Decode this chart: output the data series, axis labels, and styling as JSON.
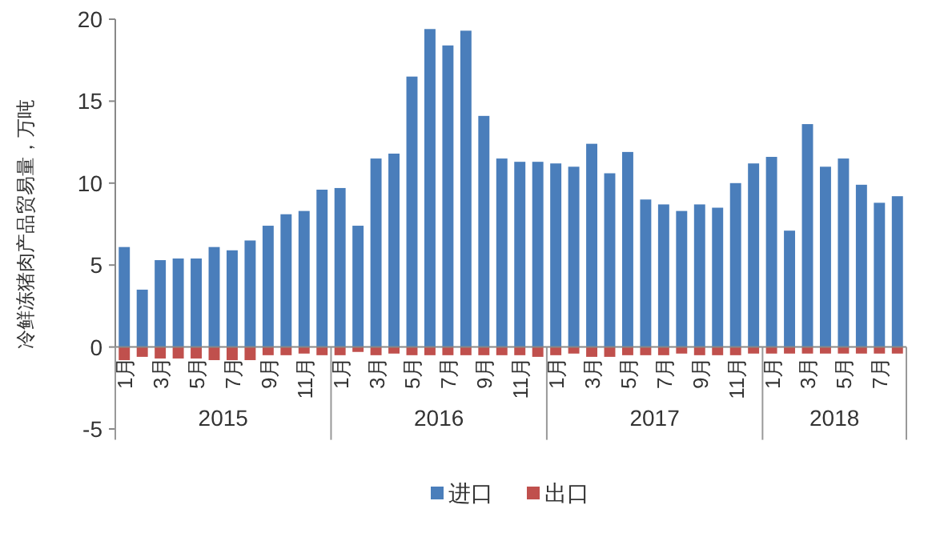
{
  "chart_data": {
    "type": "bar",
    "ylabel": "冷鲜冻猪肉产品贸易量，万吨",
    "categories": [
      "1月",
      null,
      "3月",
      null,
      "5月",
      null,
      "7月",
      null,
      "9月",
      null,
      "11月",
      null,
      "1月",
      null,
      "3月",
      null,
      "5月",
      null,
      "7月",
      null,
      "9月",
      null,
      "11月",
      null,
      "1月",
      null,
      "3月",
      null,
      "5月",
      null,
      "7月",
      null,
      "9月",
      null,
      "11月",
      null,
      "1月",
      null,
      "3月",
      null,
      "5月",
      null,
      "7月",
      null
    ],
    "annotations": [
      "2015",
      "2016",
      "2017",
      "2018"
    ],
    "series": [
      {
        "name": "进口",
        "color": "#4a7ebb",
        "values": [
          6.1,
          3.5,
          5.3,
          5.4,
          5.4,
          6.1,
          5.9,
          6.5,
          7.4,
          8.1,
          8.3,
          9.6,
          9.7,
          7.4,
          11.5,
          11.8,
          16.5,
          19.4,
          18.4,
          19.3,
          14.1,
          11.5,
          11.3,
          11.3,
          11.2,
          11.0,
          12.4,
          10.6,
          11.9,
          9.0,
          8.7,
          8.3,
          8.7,
          8.5,
          10.0,
          11.2,
          11.6,
          7.1,
          13.6,
          11.0,
          11.5,
          9.9,
          8.8,
          9.2
        ]
      },
      {
        "name": "出口",
        "color": "#c0504d",
        "values": [
          -0.8,
          -0.6,
          -0.7,
          -0.7,
          -0.7,
          -0.8,
          -0.8,
          -0.8,
          -0.5,
          -0.5,
          -0.4,
          -0.5,
          -0.5,
          -0.3,
          -0.5,
          -0.4,
          -0.5,
          -0.5,
          -0.5,
          -0.5,
          -0.5,
          -0.5,
          -0.5,
          -0.6,
          -0.5,
          -0.4,
          -0.6,
          -0.6,
          -0.5,
          -0.5,
          -0.5,
          -0.4,
          -0.5,
          -0.5,
          -0.5,
          -0.4,
          -0.4,
          -0.4,
          -0.4,
          -0.4,
          -0.4,
          -0.4,
          -0.4,
          -0.4
        ]
      }
    ],
    "stacked": true,
    "ylim": [
      -5,
      20
    ],
    "yticks": [
      -5,
      0,
      5,
      10,
      15,
      20
    ],
    "legend": "bottom"
  }
}
